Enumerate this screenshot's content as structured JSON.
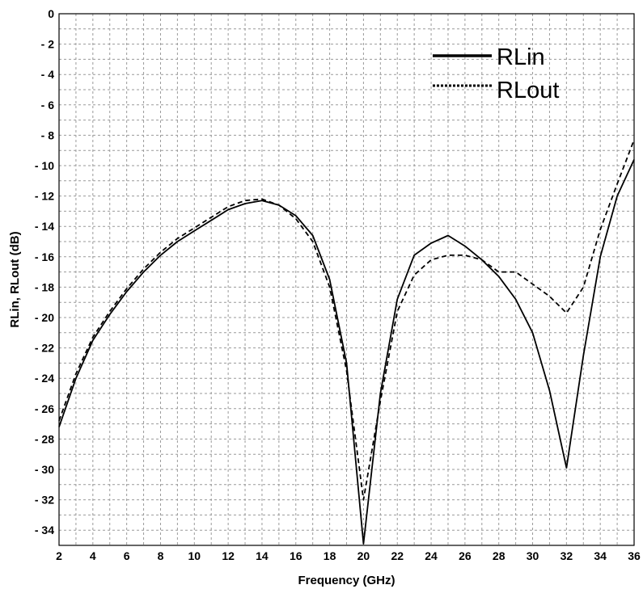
{
  "chart_data": {
    "type": "line",
    "xlabel": "Frequency (GHz)",
    "ylabel": "RLin, RLout (dB)",
    "xlim": [
      2,
      36
    ],
    "ylim": [
      -35,
      0
    ],
    "xticks": [
      2,
      4,
      6,
      8,
      10,
      12,
      14,
      16,
      18,
      20,
      22,
      24,
      26,
      28,
      30,
      32,
      34,
      36
    ],
    "yticks": [
      0,
      -2,
      -4,
      -6,
      -8,
      -10,
      -12,
      -14,
      -16,
      -18,
      -20,
      -22,
      -24,
      -26,
      -28,
      -30,
      -32,
      -34
    ],
    "grid": true,
    "legend_position": "top-right",
    "series": [
      {
        "name": "RLin",
        "style": "solid",
        "color": "#000000",
        "x": [
          2,
          3,
          4,
          5,
          6,
          7,
          8,
          9,
          10,
          11,
          12,
          13,
          14,
          15,
          16,
          17,
          18,
          19,
          20,
          21,
          22,
          23,
          24,
          25,
          26,
          27,
          28,
          29,
          30,
          31,
          32,
          33,
          34,
          35,
          36
        ],
        "y": [
          -27.2,
          -24.0,
          -21.5,
          -19.8,
          -18.3,
          -17.0,
          -15.9,
          -15.0,
          -14.3,
          -13.6,
          -12.9,
          -12.5,
          -12.3,
          -12.6,
          -13.3,
          -14.6,
          -17.5,
          -23.0,
          -34.9,
          -25.0,
          -18.8,
          -15.9,
          -15.1,
          -14.6,
          -15.3,
          -16.2,
          -17.3,
          -18.8,
          -21.0,
          -24.8,
          -29.9,
          -22.5,
          -16.0,
          -12.0,
          -9.6
        ]
      },
      {
        "name": "RLout",
        "style": "dashed",
        "color": "#000000",
        "x": [
          2,
          3,
          4,
          5,
          6,
          7,
          8,
          9,
          10,
          11,
          12,
          13,
          14,
          15,
          16,
          17,
          18,
          19,
          20,
          21,
          22,
          23,
          24,
          25,
          26,
          27,
          28,
          29,
          30,
          31,
          32,
          33,
          34,
          35,
          36
        ],
        "y": [
          -26.8,
          -23.7,
          -21.3,
          -19.6,
          -18.1,
          -16.8,
          -15.7,
          -14.8,
          -14.1,
          -13.4,
          -12.7,
          -12.3,
          -12.2,
          -12.6,
          -13.5,
          -15.0,
          -18.0,
          -23.5,
          -32.0,
          -25.5,
          -19.6,
          -17.2,
          -16.2,
          -15.9,
          -15.9,
          -16.2,
          -17.0,
          -17.0,
          -17.8,
          -18.6,
          -19.7,
          -18.0,
          -14.2,
          -11.2,
          -8.3
        ]
      }
    ]
  }
}
